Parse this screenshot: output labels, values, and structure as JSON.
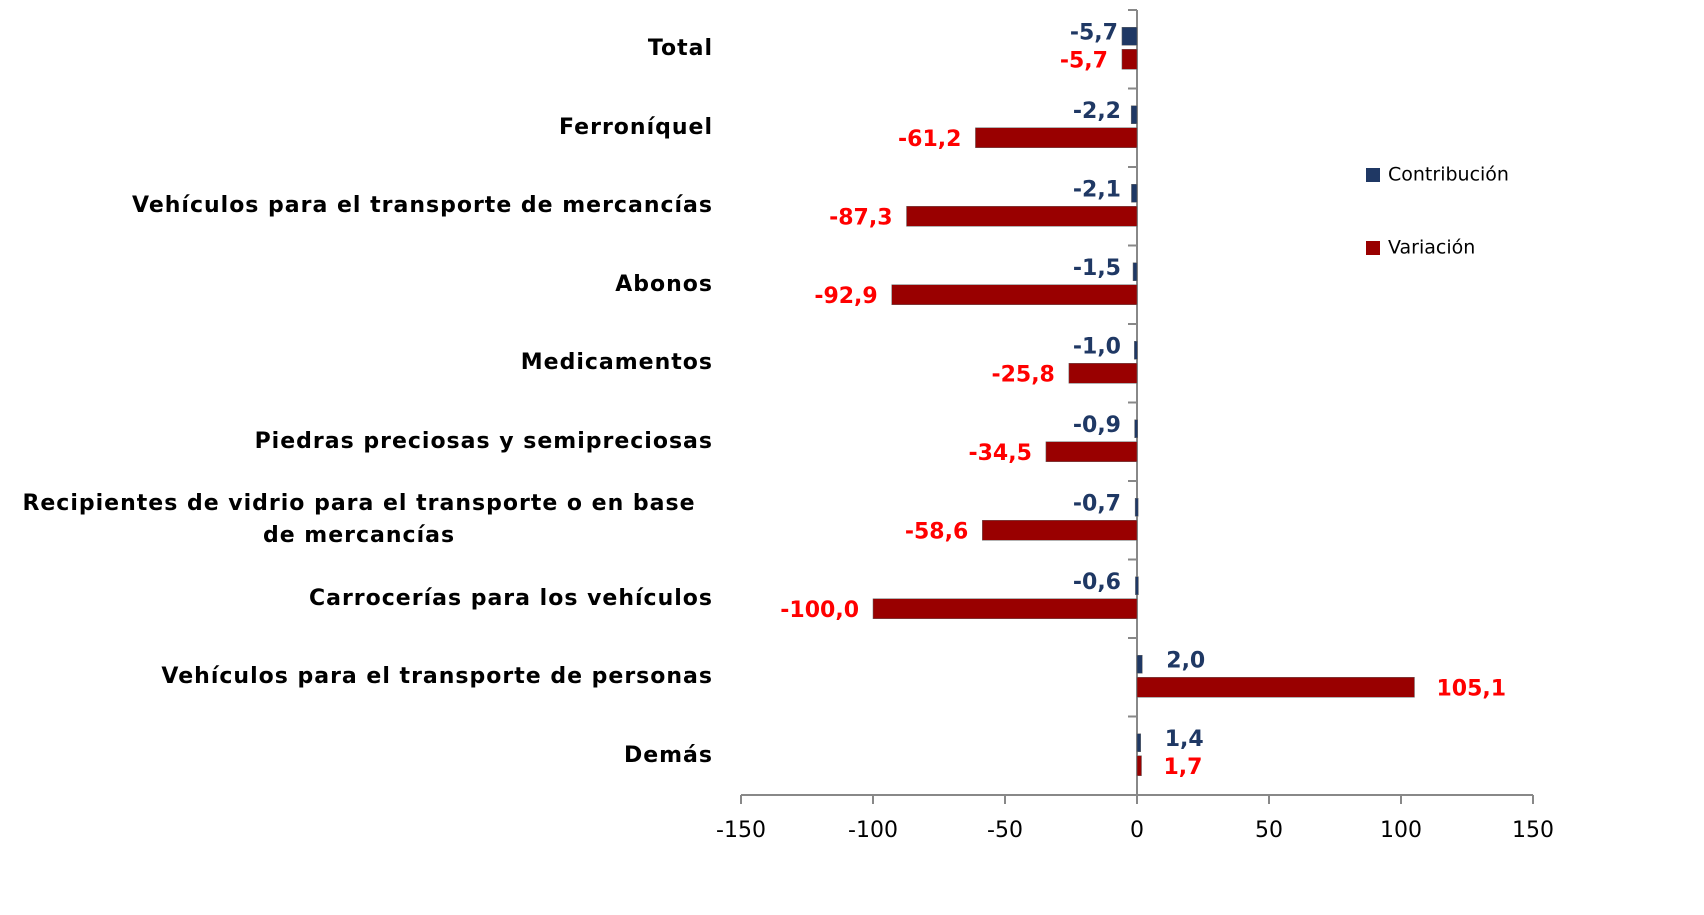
{
  "chart_data": {
    "type": "bar",
    "orientation": "horizontal",
    "categories": [
      "Total",
      "Ferroníquel",
      "Vehículos para el transporte de mercancías",
      "Abonos",
      "Medicamentos",
      "Piedras preciosas y semipreciosas",
      "Recipientes de vidrio para el transporte o en base de mercancías",
      "Carrocerías para los vehículos",
      "Vehículos para el transporte de personas",
      "Demás"
    ],
    "series": [
      {
        "name": "Contribución",
        "color": "#1f3864",
        "label_color": "#1f3864",
        "values": [
          -5.7,
          -2.2,
          -2.1,
          -1.5,
          -1.0,
          -0.9,
          -0.7,
          -0.6,
          2.0,
          1.4
        ],
        "value_labels": [
          "-5,7",
          "-2,2",
          "-2,1",
          "-1,5",
          "-1,0",
          "-0,9",
          "-0,7",
          "-0,6",
          "2,0",
          "1,4"
        ]
      },
      {
        "name": "Variación",
        "color": "#990000",
        "label_color": "#ff0000",
        "values": [
          -5.7,
          -61.2,
          -87.3,
          -92.9,
          -25.8,
          -34.5,
          -58.6,
          -100.0,
          105.1,
          1.7
        ],
        "value_labels": [
          "-5,7",
          "-61,2",
          "-87,3",
          "-92,9",
          "-25,8",
          "-34,5",
          "-58,6",
          "-100,0",
          "105,1",
          "1,7"
        ]
      }
    ],
    "xlim": [
      -150,
      150
    ],
    "xticks": [
      -150,
      -100,
      -50,
      0,
      50,
      100,
      150
    ],
    "legend": "right",
    "grid": false
  }
}
